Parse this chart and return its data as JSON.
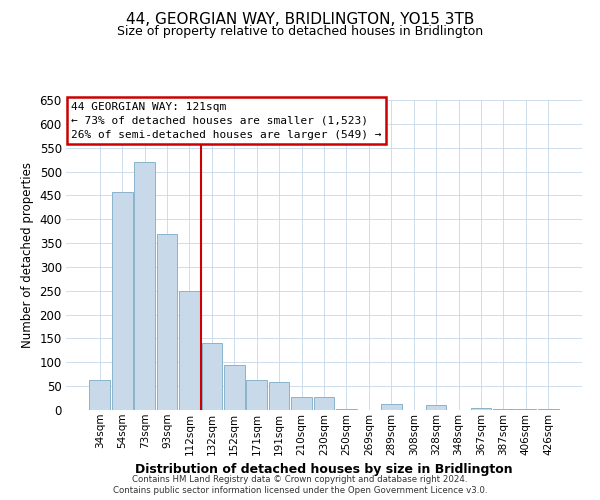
{
  "title": "44, GEORGIAN WAY, BRIDLINGTON, YO15 3TB",
  "subtitle": "Size of property relative to detached houses in Bridlington",
  "xlabel": "Distribution of detached houses by size in Bridlington",
  "ylabel": "Number of detached properties",
  "bar_labels": [
    "34sqm",
    "54sqm",
    "73sqm",
    "93sqm",
    "112sqm",
    "132sqm",
    "152sqm",
    "171sqm",
    "191sqm",
    "210sqm",
    "230sqm",
    "250sqm",
    "269sqm",
    "289sqm",
    "308sqm",
    "328sqm",
    "348sqm",
    "367sqm",
    "387sqm",
    "406sqm",
    "426sqm"
  ],
  "bar_values": [
    62,
    457,
    520,
    370,
    250,
    140,
    95,
    62,
    58,
    27,
    28,
    3,
    0,
    13,
    0,
    10,
    0,
    5,
    3,
    2,
    2
  ],
  "bar_color": "#c8daea",
  "bar_edge_color": "#8ab4cc",
  "ylim": [
    0,
    650
  ],
  "yticks": [
    0,
    50,
    100,
    150,
    200,
    250,
    300,
    350,
    400,
    450,
    500,
    550,
    600,
    650
  ],
  "property_line_x": 4.5,
  "property_line_color": "#cc0000",
  "annotation_title": "44 GEORGIAN WAY: 121sqm",
  "annotation_line1": "← 73% of detached houses are smaller (1,523)",
  "annotation_line2": "26% of semi-detached houses are larger (549) →",
  "annotation_box_color": "#ffffff",
  "annotation_box_edge": "#cc0000",
  "footnote1": "Contains HM Land Registry data © Crown copyright and database right 2024.",
  "footnote2": "Contains public sector information licensed under the Open Government Licence v3.0.",
  "background_color": "#ffffff",
  "grid_color": "#c8d8e8"
}
